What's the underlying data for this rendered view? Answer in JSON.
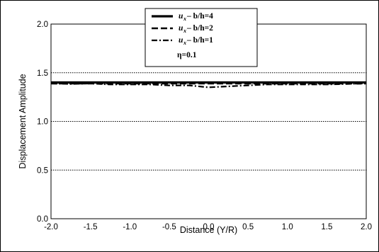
{
  "chart_data": {
    "type": "line",
    "xlabel": "Distance (Y/R)",
    "ylabel": "Displacement Amplitude",
    "xlim": [
      -2.0,
      2.0
    ],
    "ylim": [
      0.0,
      2.0
    ],
    "x_ticks": [
      "-2.0",
      "-1.5",
      "-1.0",
      "-0.5",
      "0.0",
      "0.5",
      "1.0",
      "1.5",
      "2.0"
    ],
    "y_ticks": [
      "0.0",
      "0.5",
      "1.0",
      "1.5",
      "2.0"
    ],
    "grid": "horizontal dotted",
    "legend_position": "top-center",
    "legend_note": "η=0.1",
    "series": [
      {
        "name": "u_x – b/h=4",
        "legend_var": "u",
        "legend_sub": "x",
        "legend_text": " – b/h=4",
        "style": "solid",
        "x": [
          -2.0,
          -1.5,
          -1.0,
          -0.5,
          0.0,
          0.5,
          1.0,
          1.5,
          2.0
        ],
        "values": [
          1.4,
          1.4,
          1.4,
          1.4,
          1.4,
          1.4,
          1.4,
          1.4,
          1.4
        ]
      },
      {
        "name": "u_x – b/h=2",
        "legend_var": "u",
        "legend_sub": "x",
        "legend_text": " – b/h=2",
        "style": "dashed",
        "x": [
          -2.0,
          -1.5,
          -1.0,
          -0.5,
          0.0,
          0.5,
          1.0,
          1.5,
          2.0
        ],
        "values": [
          1.39,
          1.39,
          1.39,
          1.39,
          1.39,
          1.39,
          1.39,
          1.39,
          1.39
        ]
      },
      {
        "name": "u_x – b/h=1",
        "legend_var": "u",
        "legend_sub": "x",
        "legend_text": " – b/h=1",
        "style": "dashdot",
        "x": [
          -2.0,
          -1.75,
          -1.5,
          -1.25,
          -1.0,
          -0.75,
          -0.5,
          -0.25,
          0.0,
          0.25,
          0.5,
          0.75,
          1.0,
          1.25,
          1.5,
          1.75,
          2.0
        ],
        "values": [
          1.39,
          1.385,
          1.39,
          1.38,
          1.38,
          1.38,
          1.37,
          1.37,
          1.35,
          1.36,
          1.37,
          1.38,
          1.38,
          1.38,
          1.38,
          1.385,
          1.39
        ]
      }
    ],
    "colors": {
      "line": "#000000",
      "background": "#ffffff",
      "grid": "#000000"
    }
  }
}
